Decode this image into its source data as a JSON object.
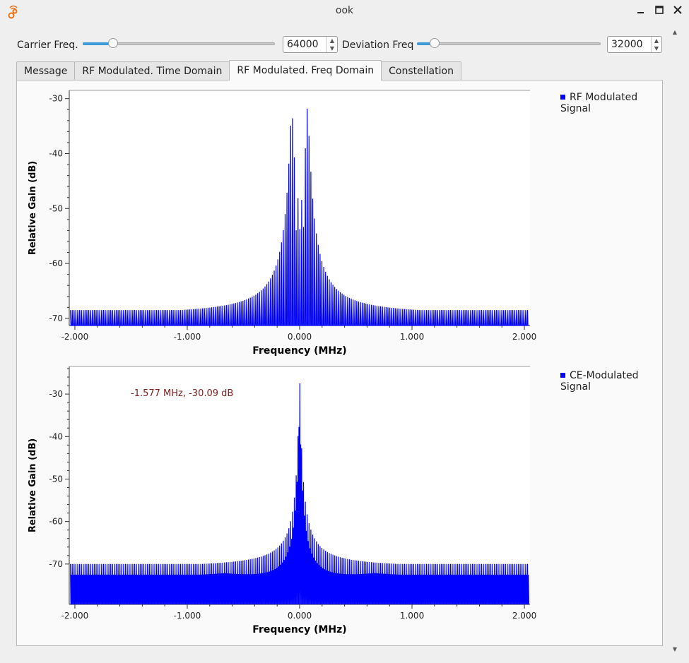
{
  "window": {
    "title": "ook",
    "icon": "gnuradio-icon"
  },
  "controls": {
    "carrier": {
      "label": "Carrier Freq.",
      "value": "64000",
      "slider_fraction": 0.14
    },
    "deviation": {
      "label": "Deviation Freq",
      "value": "32000",
      "slider_fraction": 0.075
    }
  },
  "tabs": [
    {
      "label": "Message",
      "active": false
    },
    {
      "label": "RF Modulated. Time Domain",
      "active": false
    },
    {
      "label": "RF Modulated. Freq Domain",
      "active": true
    },
    {
      "label": "Constellation",
      "active": false
    }
  ],
  "chart_data": [
    {
      "type": "line",
      "xlabel": "Frequency (MHz)",
      "ylabel": "Relative Gain (dB)",
      "xlim": [
        -2.05,
        2.05
      ],
      "ylim": [
        -71.3,
        -28.5
      ],
      "xticks": [
        "-2.000",
        "-1.000",
        "0.000",
        "1.000",
        "2.000"
      ],
      "yticks": [
        "-30",
        "-40",
        "-50",
        "-60",
        "-70"
      ],
      "series": [
        {
          "name": "RF Modulated Signal",
          "color": "#0000ff",
          "description_peaks": [
            {
              "x": -0.07,
              "y": -31
            },
            {
              "x": 0.07,
              "y": -31
            }
          ],
          "floor": -69.5
        }
      ],
      "legend": "top-right"
    },
    {
      "type": "line",
      "xlabel": "Frequency (MHz)",
      "ylabel": "Relative Gain (dB)",
      "xlim": [
        -2.05,
        2.05
      ],
      "ylim": [
        -79.5,
        -23.5
      ],
      "xticks": [
        "-2.000",
        "-1.000",
        "0.000",
        "1.000",
        "2.000"
      ],
      "yticks": [
        "-30",
        "-40",
        "-50",
        "-60",
        "-70"
      ],
      "series": [
        {
          "name": "CE-Modulated Signal",
          "color": "#0000ff",
          "description_peaks": [
            {
              "x": 0.0,
              "y": -25
            }
          ],
          "floor": -71
        }
      ],
      "annotation": "-1.577 MHz, -30.09 dB",
      "legend": "top-right"
    }
  ]
}
